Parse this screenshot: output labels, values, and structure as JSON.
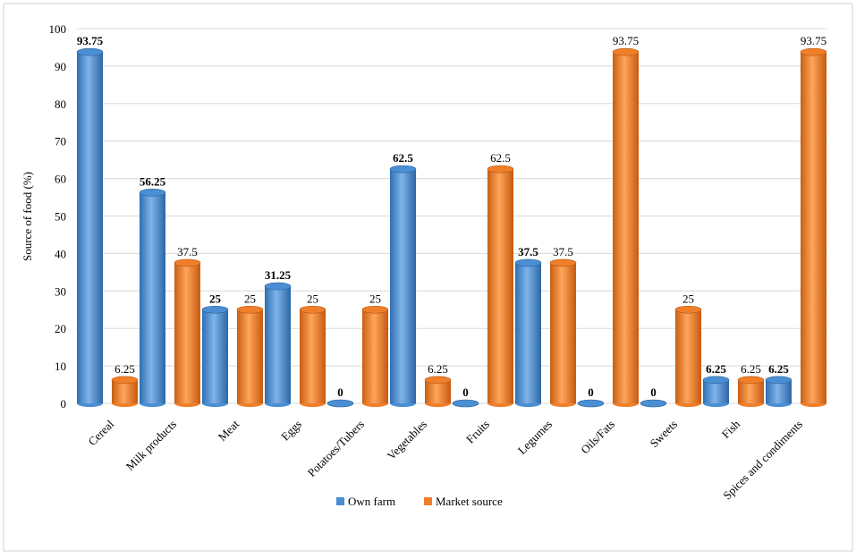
{
  "chart_data": {
    "type": "bar",
    "title": "",
    "xlabel": "",
    "ylabel": "Source of food (%)",
    "ylim": [
      0,
      100
    ],
    "yticks": [
      0,
      10,
      20,
      30,
      40,
      50,
      60,
      70,
      80,
      90,
      100
    ],
    "grid": true,
    "legend_position": "bottom",
    "categories": [
      "Cereal",
      "Milk products",
      "Meat",
      "Eggs",
      "Potatoes/Tubers",
      "Vegetables",
      "Fruits",
      "Legumes",
      "Oils/Fats",
      "Sweets",
      "Fish",
      "Spices and condiments"
    ],
    "series": [
      {
        "name": "Own farm",
        "color": "#4a8fd4",
        "values": [
          93.75,
          56.25,
          25,
          31.25,
          0,
          62.5,
          0,
          37.5,
          0,
          0,
          6.25,
          6.25
        ],
        "labels": [
          "93.75",
          "56.25",
          "25",
          "31.25",
          "0",
          "62.5",
          "0",
          "37.5",
          "0",
          "0",
          "6.25",
          "6.25"
        ]
      },
      {
        "name": "Market source",
        "color": "#f07f2a",
        "values": [
          6.25,
          37.5,
          25,
          25,
          25,
          6.25,
          62.5,
          37.5,
          93.75,
          25,
          6.25,
          93.75
        ],
        "labels": [
          "6.25",
          "37.5",
          "25",
          "25",
          "25",
          "6.25",
          "62.5",
          "37.5",
          "93.75",
          "25",
          "6.25",
          "93.75"
        ]
      }
    ]
  }
}
